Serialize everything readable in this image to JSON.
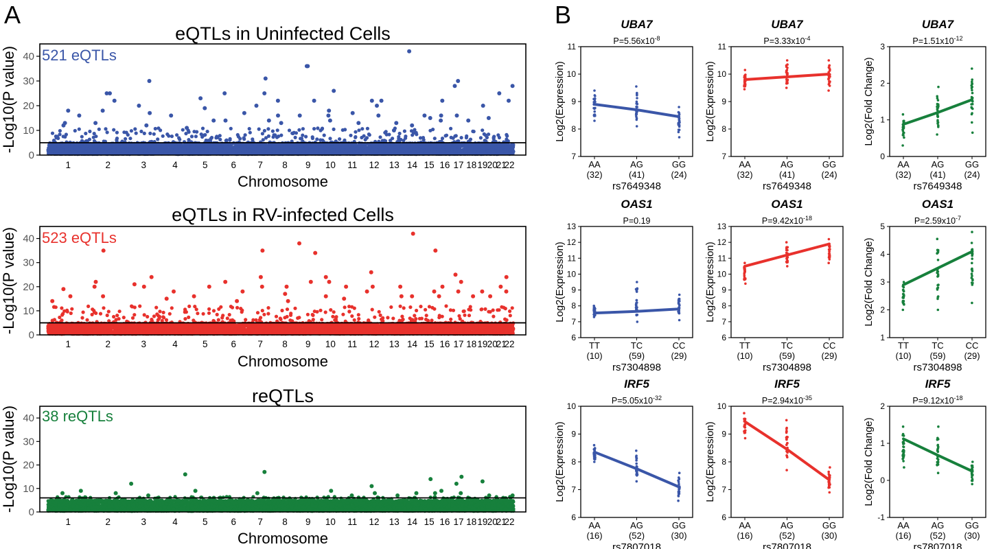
{
  "panel_labels": {
    "a": "A",
    "b": "B"
  },
  "colors": {
    "blue": "#3a56a8",
    "red": "#e8312c",
    "green": "#17803c",
    "black": "#000000"
  },
  "chart_data": [
    {
      "type": "scatter",
      "kind": "manhattan",
      "title": "eQTLs in Uninfected Cells",
      "annotation": "521 eQTLs",
      "color": "blue",
      "xlabel": "Chromosome",
      "ylabel": "-Log10(P value)",
      "ylim": [
        0,
        45
      ],
      "yticks": [
        0,
        10,
        20,
        30,
        40
      ],
      "chromosomes": [
        "1",
        "2",
        "3",
        "4",
        "5",
        "6",
        "7",
        "8",
        "9",
        "10",
        "11",
        "12",
        "13",
        "14",
        "15",
        "16",
        "17",
        "18",
        "19",
        "20",
        "21",
        "22"
      ],
      "threshold": 5,
      "noise_max": 4.5,
      "mid_max": 11,
      "peaks": [
        [
          1,
          13
        ],
        [
          1,
          18
        ],
        [
          1,
          16
        ],
        [
          1,
          12
        ],
        [
          2,
          25
        ],
        [
          2,
          22
        ],
        [
          2,
          18
        ],
        [
          2,
          25
        ],
        [
          2,
          13
        ],
        [
          3,
          17
        ],
        [
          3,
          20
        ],
        [
          3,
          30
        ],
        [
          3,
          12
        ],
        [
          4,
          16
        ],
        [
          4,
          11
        ],
        [
          5,
          23
        ],
        [
          5,
          14
        ],
        [
          5,
          19
        ],
        [
          6,
          25
        ],
        [
          6,
          17
        ],
        [
          6,
          14
        ],
        [
          7,
          25
        ],
        [
          7,
          31
        ],
        [
          7,
          20
        ],
        [
          7,
          14
        ],
        [
          8,
          16
        ],
        [
          8,
          13
        ],
        [
          8,
          22
        ],
        [
          9,
          36
        ],
        [
          9,
          36
        ],
        [
          9,
          16
        ],
        [
          9,
          22
        ],
        [
          10,
          18
        ],
        [
          10,
          26
        ],
        [
          10,
          16
        ],
        [
          10,
          14
        ],
        [
          11,
          17
        ],
        [
          11,
          13
        ],
        [
          12,
          22
        ],
        [
          12,
          20
        ],
        [
          12,
          16
        ],
        [
          12,
          22
        ],
        [
          13,
          13
        ],
        [
          13,
          10
        ],
        [
          14,
          42
        ],
        [
          14,
          12
        ],
        [
          15,
          16
        ],
        [
          15,
          15
        ],
        [
          16,
          16
        ],
        [
          16,
          22
        ],
        [
          16,
          14
        ],
        [
          17,
          30
        ],
        [
          17,
          28
        ],
        [
          17,
          16
        ],
        [
          18,
          14
        ],
        [
          19,
          20
        ],
        [
          20,
          15
        ],
        [
          21,
          25
        ],
        [
          22,
          28
        ],
        [
          22,
          22
        ]
      ]
    },
    {
      "type": "scatter",
      "kind": "manhattan",
      "title": "eQTLs in RV-infected Cells",
      "annotation": "523 eQTLs",
      "color": "red",
      "xlabel": "Chromosome",
      "ylabel": "-Log10(P value)",
      "ylim": [
        0,
        45
      ],
      "yticks": [
        0,
        10,
        20,
        30,
        40
      ],
      "chromosomes": [
        "1",
        "2",
        "3",
        "4",
        "5",
        "6",
        "7",
        "8",
        "9",
        "10",
        "11",
        "12",
        "13",
        "14",
        "15",
        "16",
        "17",
        "18",
        "19",
        "20",
        "21",
        "22"
      ],
      "threshold": 5,
      "noise_max": 4.5,
      "mid_max": 12,
      "peaks": [
        [
          1,
          16
        ],
        [
          1,
          19
        ],
        [
          1,
          14
        ],
        [
          2,
          35
        ],
        [
          2,
          22
        ],
        [
          2,
          20
        ],
        [
          2,
          16
        ],
        [
          3,
          20
        ],
        [
          3,
          24
        ],
        [
          3,
          21
        ],
        [
          4,
          18
        ],
        [
          4,
          15
        ],
        [
          5,
          16
        ],
        [
          5,
          20
        ],
        [
          6,
          22
        ],
        [
          6,
          18
        ],
        [
          6,
          14
        ],
        [
          7,
          35
        ],
        [
          7,
          20
        ],
        [
          7,
          24
        ],
        [
          8,
          17
        ],
        [
          8,
          20
        ],
        [
          8,
          14
        ],
        [
          9,
          38
        ],
        [
          9,
          34
        ],
        [
          9,
          22
        ],
        [
          10,
          24
        ],
        [
          10,
          22
        ],
        [
          10,
          16
        ],
        [
          11,
          20
        ],
        [
          11,
          15
        ],
        [
          12,
          26
        ],
        [
          12,
          20
        ],
        [
          12,
          18
        ],
        [
          13,
          16
        ],
        [
          13,
          20
        ],
        [
          14,
          42
        ],
        [
          14,
          16
        ],
        [
          15,
          35
        ],
        [
          15,
          18
        ],
        [
          16,
          20
        ],
        [
          16,
          16
        ],
        [
          17,
          25
        ],
        [
          17,
          22
        ],
        [
          17,
          18
        ],
        [
          18,
          16
        ],
        [
          19,
          18
        ],
        [
          20,
          16
        ],
        [
          21,
          20
        ],
        [
          22,
          24
        ],
        [
          22,
          18
        ]
      ]
    },
    {
      "type": "scatter",
      "kind": "manhattan",
      "title": "reQTLs",
      "annotation": "38 reQTLs",
      "color": "green",
      "xlabel": "Chromosome",
      "ylabel": "-Log10(P value)",
      "ylim": [
        0,
        45
      ],
      "yticks": [
        0,
        10,
        20,
        30,
        40
      ],
      "chromosomes": [
        "1",
        "2",
        "3",
        "4",
        "5",
        "6",
        "7",
        "8",
        "9",
        "10",
        "11",
        "12",
        "13",
        "14",
        "15",
        "16",
        "17",
        "18",
        "19",
        "20",
        "21",
        "22"
      ],
      "threshold": 6,
      "noise_max": 4.5,
      "mid_max": 6.5,
      "peaks": [
        [
          1,
          9
        ],
        [
          1,
          8
        ],
        [
          2,
          8
        ],
        [
          3,
          12
        ],
        [
          3,
          7
        ],
        [
          4,
          16
        ],
        [
          5,
          9
        ],
        [
          5,
          6
        ],
        [
          7,
          17
        ],
        [
          7,
          8
        ],
        [
          8,
          6
        ],
        [
          10,
          9
        ],
        [
          11,
          7
        ],
        [
          12,
          11
        ],
        [
          12,
          8
        ],
        [
          13,
          7
        ],
        [
          14,
          8
        ],
        [
          15,
          14
        ],
        [
          15,
          8
        ],
        [
          16,
          9
        ],
        [
          17,
          15
        ],
        [
          17,
          12
        ],
        [
          17,
          8
        ],
        [
          19,
          13
        ],
        [
          20,
          7
        ],
        [
          21,
          6
        ],
        [
          22,
          7
        ]
      ]
    },
    {
      "type": "scatter",
      "kind": "eqtl",
      "gene": "UBA7",
      "p": "P=5.56x10",
      "exp": "-8",
      "color": "blue",
      "ylabel": "Log2(Expression)",
      "ylim": [
        7,
        11
      ],
      "yticks": [
        7,
        8,
        9,
        10,
        11
      ],
      "snp": "rs7649348",
      "genotypes": [
        "AA",
        "AG",
        "GG"
      ],
      "counts": [
        "(32)",
        "(41)",
        "(24)"
      ],
      "means": [
        8.9,
        8.7,
        8.45
      ],
      "spread": [
        [
          8.3,
          9.4
        ],
        [
          8.1,
          9.55
        ],
        [
          7.7,
          8.8
        ]
      ]
    },
    {
      "type": "scatter",
      "kind": "eqtl",
      "gene": "UBA7",
      "p": "P=3.33x10",
      "exp": "-4",
      "color": "red",
      "ylabel": "Log2(Expression)",
      "ylim": [
        7,
        11
      ],
      "yticks": [
        7,
        8,
        9,
        10,
        11
      ],
      "snp": "rs7649348",
      "genotypes": [
        "AA",
        "AG",
        "GG"
      ],
      "counts": [
        "(32)",
        "(41)",
        "(24)"
      ],
      "means": [
        9.8,
        9.9,
        10.0
      ],
      "spread": [
        [
          9.45,
          10.15
        ],
        [
          9.5,
          10.5
        ],
        [
          9.4,
          10.5
        ]
      ]
    },
    {
      "type": "scatter",
      "kind": "eqtl",
      "gene": "UBA7",
      "p": "P=1.51x10",
      "exp": "-12",
      "color": "green",
      "ylabel": "Log2(Fold Change)",
      "ylim": [
        0,
        3
      ],
      "yticks": [
        0,
        1,
        2,
        3
      ],
      "snp": "rs7649348",
      "genotypes": [
        "AA",
        "AG",
        "GG"
      ],
      "counts": [
        "(32)",
        "(41)",
        "(24)"
      ],
      "means": [
        0.88,
        1.2,
        1.55
      ],
      "spread": [
        [
          0.3,
          1.15
        ],
        [
          0.6,
          1.9
        ],
        [
          0.65,
          2.4
        ]
      ]
    },
    {
      "type": "scatter",
      "kind": "eqtl",
      "gene": "OAS1",
      "p": "P=0.19",
      "exp": "",
      "color": "blue",
      "ylabel": "Log2(Expression)",
      "ylim": [
        6,
        13
      ],
      "yticks": [
        6,
        7,
        8,
        9,
        10,
        11,
        12,
        13
      ],
      "snp": "rs7304898",
      "genotypes": [
        "TT",
        "TC",
        "CC"
      ],
      "counts": [
        "(10)",
        "(59)",
        "(29)"
      ],
      "means": [
        7.55,
        7.65,
        7.8
      ],
      "spread": [
        [
          7.3,
          8.0
        ],
        [
          7.0,
          9.5
        ],
        [
          7.1,
          8.7
        ]
      ]
    },
    {
      "type": "scatter",
      "kind": "eqtl",
      "gene": "OAS1",
      "p": "P=9.42x10",
      "exp": "-18",
      "color": "red",
      "ylabel": "Log2(Expression)",
      "ylim": [
        6,
        13
      ],
      "yticks": [
        6,
        7,
        8,
        9,
        10,
        11,
        12,
        13
      ],
      "snp": "rs7304898",
      "genotypes": [
        "TT",
        "TC",
        "CC"
      ],
      "counts": [
        "(10)",
        "(59)",
        "(29)"
      ],
      "means": [
        10.5,
        11.2,
        11.9
      ],
      "spread": [
        [
          9.4,
          10.7
        ],
        [
          10.5,
          12.0
        ],
        [
          10.7,
          12.2
        ]
      ]
    },
    {
      "type": "scatter",
      "kind": "eqtl",
      "gene": "OAS1",
      "p": "P=2.59x10",
      "exp": "-7",
      "color": "green",
      "ylabel": "Log2(Fold Change)",
      "ylim": [
        1,
        5
      ],
      "yticks": [
        1,
        2,
        3,
        4,
        5
      ],
      "snp": "rs7304898",
      "genotypes": [
        "TT",
        "TC",
        "CC"
      ],
      "counts": [
        "(10)",
        "(59)",
        "(29)"
      ],
      "means": [
        2.9,
        3.5,
        4.1
      ],
      "spread": [
        [
          2.0,
          3.0
        ],
        [
          2.0,
          4.55
        ],
        [
          2.25,
          4.8
        ]
      ]
    },
    {
      "type": "scatter",
      "kind": "eqtl",
      "gene": "IRF5",
      "p": "P=5.05x10",
      "exp": "-32",
      "color": "blue",
      "ylabel": "Log2(Expression)",
      "ylim": [
        6,
        10
      ],
      "yticks": [
        6,
        7,
        8,
        9,
        10
      ],
      "snp": "rs7807018",
      "genotypes": [
        "AA",
        "AG",
        "GG"
      ],
      "counts": [
        "(16)",
        "(52)",
        "(30)"
      ],
      "means": [
        8.35,
        7.75,
        7.1
      ],
      "spread": [
        [
          8.0,
          8.6
        ],
        [
          7.3,
          8.4
        ],
        [
          6.6,
          7.6
        ]
      ]
    },
    {
      "type": "scatter",
      "kind": "eqtl",
      "gene": "IRF5",
      "p": "P=2.94x10",
      "exp": "-35",
      "color": "red",
      "ylabel": "Log2(Expression)",
      "ylim": [
        6,
        10
      ],
      "yticks": [
        6,
        7,
        8,
        9,
        10
      ],
      "snp": "rs7807018",
      "genotypes": [
        "AA",
        "AG",
        "GG"
      ],
      "counts": [
        "(16)",
        "(52)",
        "(30)"
      ],
      "means": [
        9.45,
        8.45,
        7.35
      ],
      "spread": [
        [
          8.85,
          9.75
        ],
        [
          7.7,
          9.5
        ],
        [
          6.9,
          7.8
        ]
      ]
    },
    {
      "type": "scatter",
      "kind": "eqtl",
      "gene": "IRF5",
      "p": "P=9.12x10",
      "exp": "-18",
      "color": "green",
      "ylabel": "Log2(Fold Change)",
      "ylim": [
        -1,
        2
      ],
      "yticks": [
        -1,
        0,
        1,
        2
      ],
      "snp": "rs7807018",
      "genotypes": [
        "AA",
        "AG",
        "GG"
      ],
      "counts": [
        "(16)",
        "(52)",
        "(30)"
      ],
      "means": [
        1.12,
        0.68,
        0.25
      ],
      "spread": [
        [
          0.35,
          1.45
        ],
        [
          0.2,
          1.45
        ],
        [
          -0.1,
          0.5
        ]
      ]
    }
  ]
}
